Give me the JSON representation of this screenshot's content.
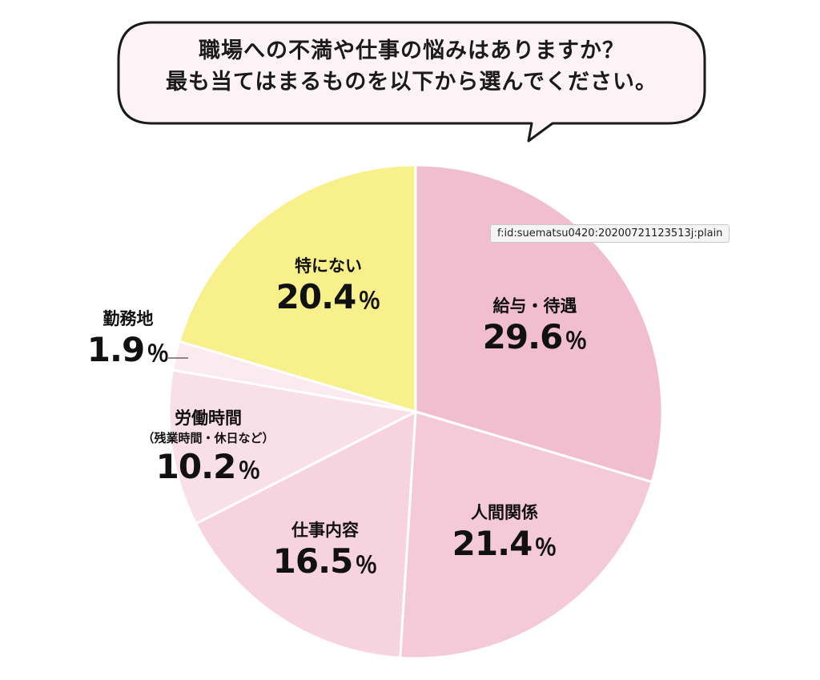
{
  "chart_data": {
    "type": "pie",
    "title": "職場への不満や仕事の悩みはありますか？",
    "subtitle": "最も当てはまるものを以下から選んでください。",
    "unit": "％",
    "slices": [
      {
        "label": "給与・待遇",
        "sublabel": "",
        "value": 29.6,
        "value_text": "29.6",
        "color": "#f1bed0"
      },
      {
        "label": "人間関係",
        "sublabel": "",
        "value": 21.4,
        "value_text": "21.4",
        "color": "#f4c9d8"
      },
      {
        "label": "仕事内容",
        "sublabel": "",
        "value": 16.5,
        "value_text": "16.5",
        "color": "#f6d3df"
      },
      {
        "label": "労働時間",
        "sublabel": "（残業時間・休日など）",
        "value": 10.2,
        "value_text": "10.2",
        "color": "#f9e0e8"
      },
      {
        "label": "勤務地",
        "sublabel": "",
        "value": 1.9,
        "value_text": "1.9",
        "color": "#fbebf0"
      },
      {
        "label": "特にない",
        "sublabel": "",
        "value": 20.4,
        "value_text": "20.4",
        "color": "#f8f08a"
      }
    ],
    "colors": {
      "bubble_fill": "#fdf3f6",
      "outline": "#1a1a1a",
      "slice_border": "#ffffff"
    }
  },
  "overlay": {
    "tooltip": "f:id:suematsu0420:20200721123513j:plain"
  }
}
